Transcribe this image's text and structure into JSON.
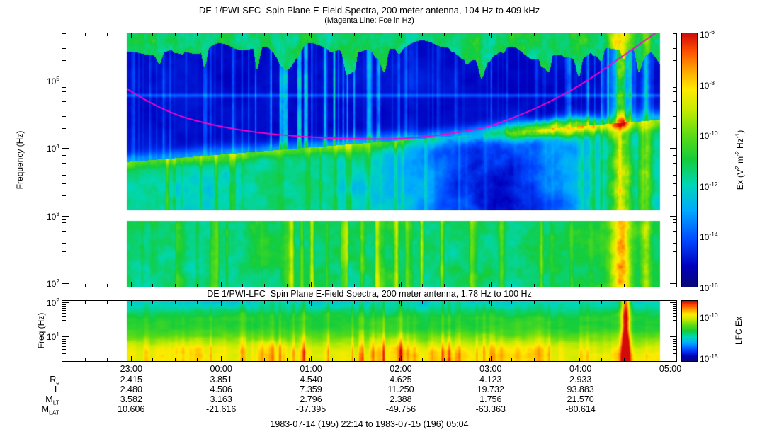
{
  "figure": {
    "footer": "1983-07-14 (195) 22:14 to 1983-07-15 (196) 05:04"
  },
  "sfc": {
    "title": "DE 1/PWI-SFC  Spin Plane E-Field Spectra, 200 meter antenna, 104 Hz to 409 kHz",
    "subtitle": "(Magenta Line: Fce in Hz)",
    "ylabel": "Frequency (Hz)",
    "colorbar_label_rich": [
      {
        "t": "Ex (V"
      },
      {
        "sup": "2"
      },
      {
        "t": " m"
      },
      {
        "sup": "-2"
      },
      {
        "t": " Hz"
      },
      {
        "sup": "-1"
      },
      {
        "t": ")"
      }
    ]
  },
  "lfc": {
    "title": "DE 1/PWI-LFC  Spin Plane E-Field Spectra, 200 meter antenna, 1.78 Hz to 100 Hz",
    "ylabel": "Freq (Hz)",
    "colorbar_label": "LFC Ex"
  },
  "time_axis": {
    "tick_labels": [
      "23:00",
      "00:00",
      "01:00",
      "02:00",
      "03:00",
      "04:00",
      "05:00"
    ],
    "start": "22:14",
    "end": "05:04"
  },
  "ephemeris": {
    "rows": [
      {
        "label_base": "R",
        "label_sub": "e",
        "values": [
          "2.415",
          "3.851",
          "4.540",
          "4.625",
          "4.123",
          "2.933"
        ]
      },
      {
        "label_base": "L",
        "label_sub": "",
        "values": [
          "2.480",
          "4.506",
          "7.359",
          "11.250",
          "19.732",
          "93.883"
        ]
      },
      {
        "label_base": "M",
        "label_sub": "LT",
        "values": [
          "3.582",
          "3.163",
          "2.796",
          "2.388",
          "1.756",
          "21.570"
        ]
      },
      {
        "label_base": "M",
        "label_sub": "LAT",
        "values": [
          "10.606",
          "-21.616",
          "-37.395",
          "-49.756",
          "-63.363",
          "-80.614"
        ]
      }
    ]
  },
  "chart_data": [
    {
      "type": "heatmap",
      "panel": "SFC",
      "title": "DE 1/PWI-SFC  Spin Plane E-Field Spectra, 200 meter antenna, 104 Hz to 409 kHz",
      "subtitle": "(Magenta Line: Fce in Hz)",
      "x": {
        "unit": "UT",
        "start": "22:14",
        "end": "05:04",
        "span_hours": 6.8333,
        "first_tick_hours": 0.7667,
        "tick_labels": [
          "23:00",
          "00:00",
          "01:00",
          "02:00",
          "03:00",
          "04:00",
          "05:00"
        ]
      },
      "y": {
        "label": "Frequency (Hz)",
        "scale": "log",
        "instrument_range_hz": [
          104,
          409000
        ],
        "display_log_range": [
          1.95,
          5.7
        ],
        "tick_exponents": [
          2,
          3,
          4,
          5
        ]
      },
      "z": {
        "label": "Ex (V^2 m^-2 Hz^-1)",
        "scale": "log",
        "colorbar_tick_exponents": [
          -6,
          -8,
          -10,
          -12,
          -14,
          -16
        ],
        "colorbar_range_exponents": [
          -6,
          -16
        ]
      },
      "data_time_extent_hours": [
        0.72,
        6.65
      ],
      "data_gap_log_hz": [
        2.925,
        3.085
      ],
      "overlay_line": {
        "name": "Fce (electron cyclotron frequency)",
        "color": "#ff00cc",
        "points_t_hours_log10hz": [
          [
            0.72,
            4.88
          ],
          [
            1.1,
            4.55
          ],
          [
            1.77,
            4.3
          ],
          [
            2.5,
            4.18
          ],
          [
            3.3,
            4.13
          ],
          [
            3.9,
            4.14
          ],
          [
            4.5,
            4.25
          ],
          [
            4.77,
            4.32
          ],
          [
            5.3,
            4.6
          ],
          [
            5.77,
            4.93
          ],
          [
            6.2,
            5.33
          ],
          [
            6.62,
            5.72
          ]
        ]
      },
      "features": [
        "auroral kilometric radiation: green band above ~100 kHz with ragged funnel-shaped lower edge",
        "dark-blue low-intensity region 20-200 kHz with sparse cyan vertical bursts, strongest 00:30-01:30",
        "upper-hybrid emission band rising from ~5 kHz at 23:00 to ~25 kHz by 04:00, brightest yellow 03:00-04:00",
        "plasmaspheric cavity (dark blue) 1-10 kHz between 02:00 and 04:00",
        "continuous green emission below ~900 Hz with yellow vertical bursts near 01:00-02:30",
        "broadband green/yellow burst across all frequencies near 04:20-04:35",
        "white horizontal data gap just below 1 kHz",
        "no data (white) before ~22:58 and after ~04:53"
      ]
    },
    {
      "type": "heatmap",
      "panel": "LFC",
      "title": "DE 1/PWI-LFC  Spin Plane E-Field Spectra, 200 meter antenna, 1.78 Hz to 100 Hz",
      "x": {
        "same_as": "SFC",
        "span_hours": 6.8333,
        "first_tick_hours": 0.7667
      },
      "y": {
        "label": "Freq (Hz)",
        "scale": "log",
        "display_log_range": [
          0.25,
          2.05
        ],
        "tick_exponents": [
          1,
          2
        ]
      },
      "z": {
        "label": "LFC Ex",
        "scale": "log",
        "colorbar_ticks": [
          {
            "exponent": -10,
            "pos": 0.26
          },
          {
            "exponent": -15,
            "pos": 0.94
          }
        ]
      },
      "data_time_extent_hours": [
        0.72,
        6.65
      ],
      "features": [
        "yellow-orange intensities below ~10 Hz for the whole pass",
        "intense red broadband bursts between 00:45 and 02:30",
        "strong red burst near 04:20",
        "greener quiet levels near 100 Hz and after 04:30"
      ]
    }
  ]
}
